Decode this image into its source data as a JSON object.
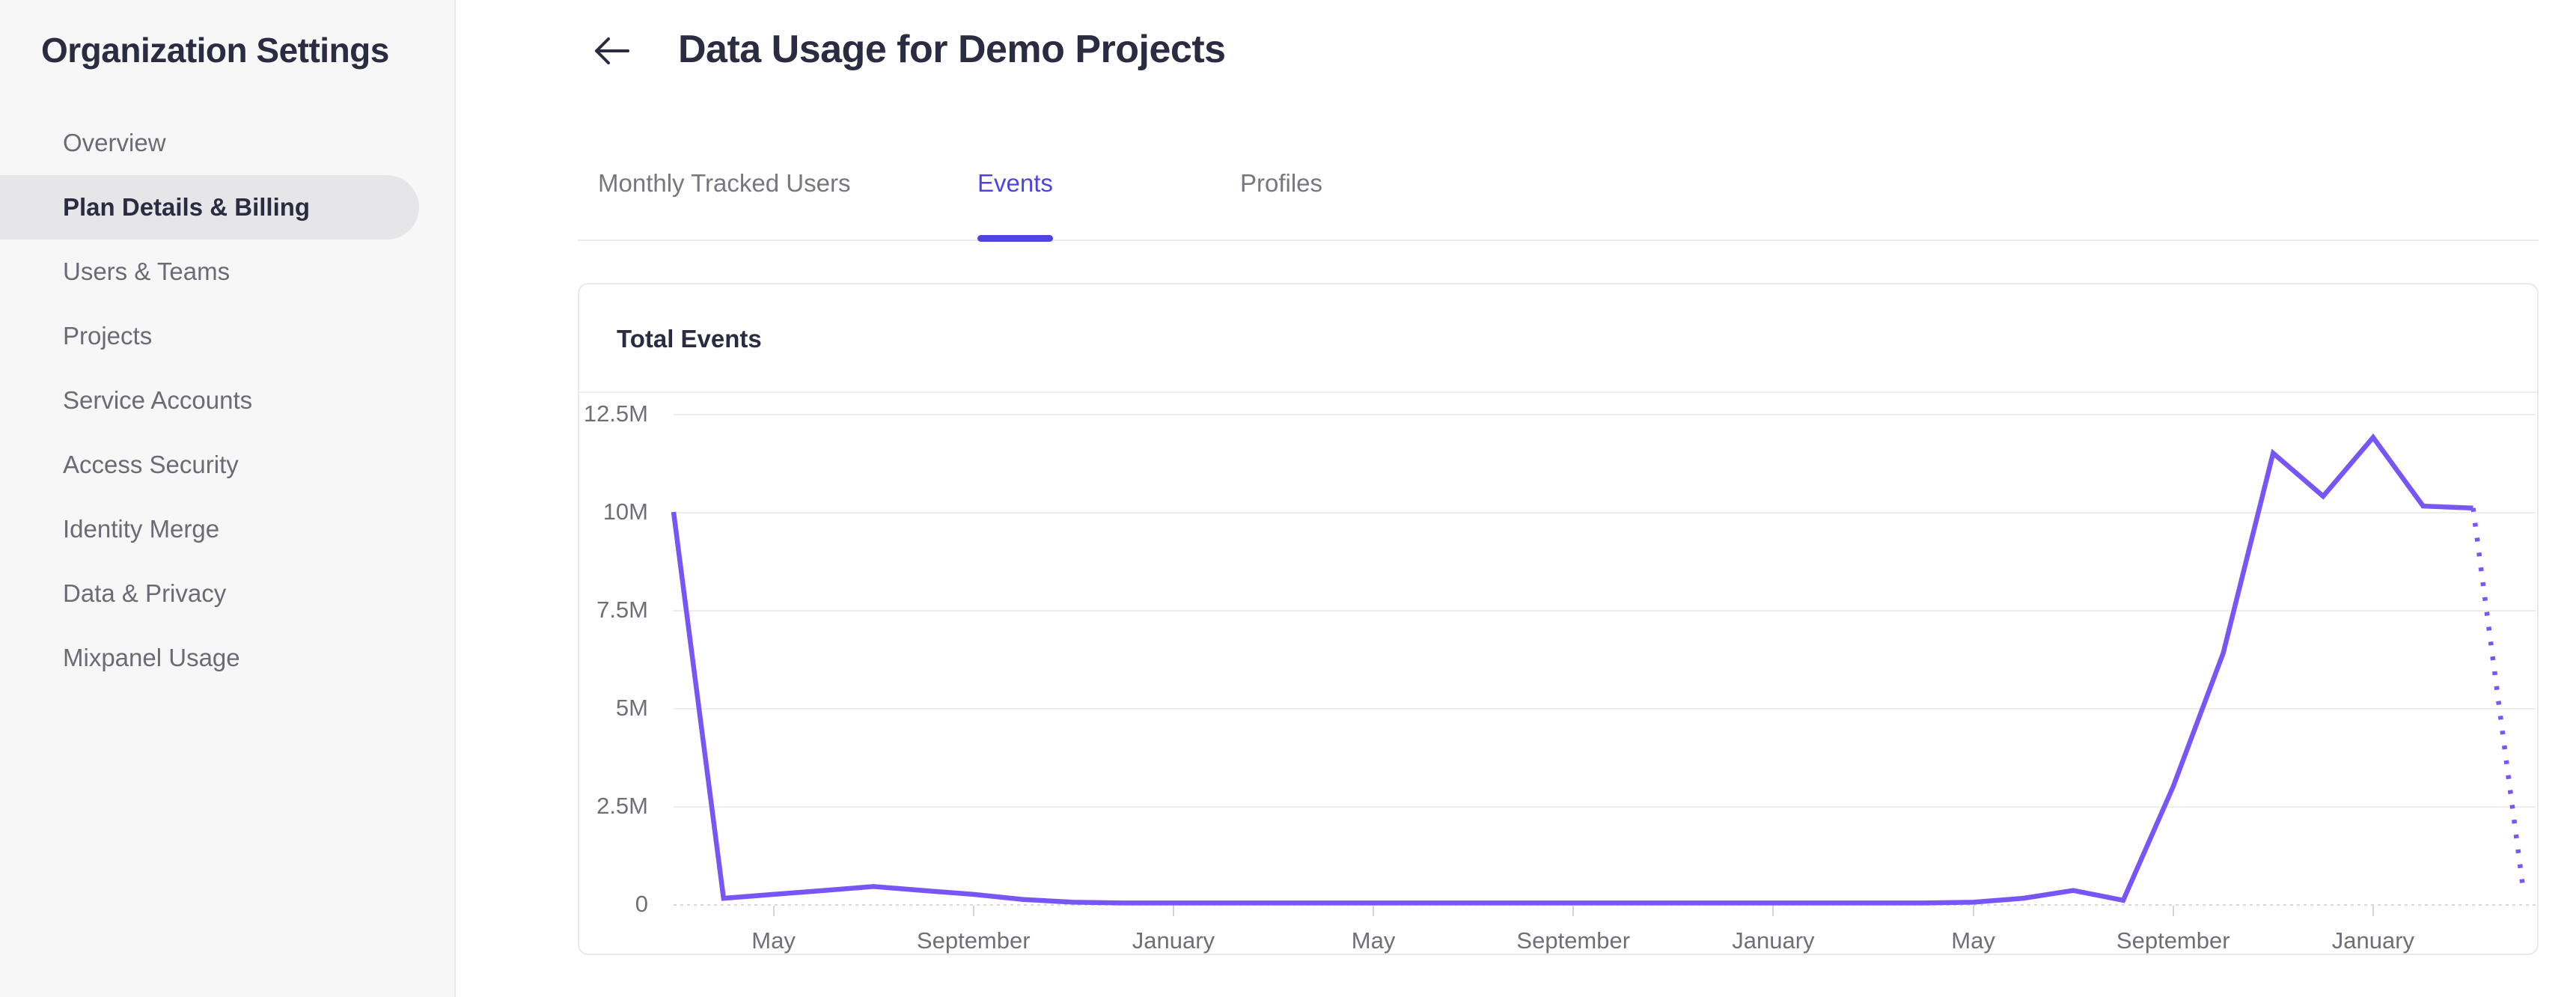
{
  "sidebar": {
    "title": "Organization Settings",
    "items": [
      {
        "label": "Overview",
        "active": false
      },
      {
        "label": "Plan Details & Billing",
        "active": true
      },
      {
        "label": "Users & Teams",
        "active": false
      },
      {
        "label": "Projects",
        "active": false
      },
      {
        "label": "Service Accounts",
        "active": false
      },
      {
        "label": "Access Security",
        "active": false
      },
      {
        "label": "Identity Merge",
        "active": false
      },
      {
        "label": "Data & Privacy",
        "active": false
      },
      {
        "label": "Mixpanel Usage",
        "active": false
      }
    ]
  },
  "header": {
    "back_icon": "arrow-left",
    "title": "Data Usage for Demo Projects"
  },
  "tabs": [
    {
      "label": "Monthly Tracked Users",
      "active": false
    },
    {
      "label": "Events",
      "active": true
    },
    {
      "label": "Profiles",
      "active": false
    }
  ],
  "card": {
    "title": "Total Events"
  },
  "colors": {
    "accent": "#4f44e0",
    "chart_line": "#7856f5",
    "text_dark": "#2b2b41",
    "text_gray": "#6f6f78"
  },
  "chart_data": {
    "type": "line",
    "title": "Total Events",
    "xlabel": "",
    "ylabel": "",
    "grid": true,
    "legend": false,
    "granularity": "monthly",
    "x_start_month": "March",
    "months_total": 38,
    "ylim_millions": [
      0,
      12.5
    ],
    "y_tick_labels": [
      "12.5M",
      "10M",
      "7.5M",
      "5M",
      "2.5M",
      "0"
    ],
    "x_tick_labels": [
      "May",
      "September",
      "January",
      "May",
      "September",
      "January",
      "May",
      "September",
      "January"
    ],
    "x_tick_month_index": [
      2,
      6,
      10,
      14,
      18,
      22,
      26,
      30,
      34
    ],
    "series": [
      {
        "name": "Total Events",
        "unit": "millions of events",
        "values_millions": [
          10.0,
          0.15,
          0.25,
          0.35,
          0.45,
          0.35,
          0.25,
          0.12,
          0.05,
          0.03,
          0.03,
          0.03,
          0.03,
          0.03,
          0.03,
          0.03,
          0.03,
          0.03,
          0.03,
          0.03,
          0.03,
          0.03,
          0.03,
          0.03,
          0.03,
          0.03,
          0.05,
          0.15,
          0.35,
          0.1,
          3.0,
          6.4,
          11.5,
          10.4,
          11.9,
          10.15,
          10.1,
          0.4
        ],
        "projected_tail_points": 2,
        "style_note": "solid line; final segment dotted (projected/incomplete month)"
      }
    ]
  }
}
